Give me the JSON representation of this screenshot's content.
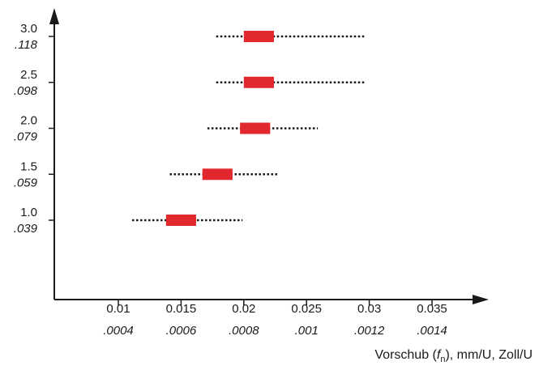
{
  "chart_data": {
    "type": "range",
    "title": "",
    "xlabel_prefix": "Vorschub (",
    "xlabel_symbol": "f",
    "xlabel_subscript": "n",
    "xlabel_suffix": "), mm/U, Zoll/U",
    "ylabel": "",
    "xlim": [
      0.003,
      0.038
    ],
    "ylim": [
      0.0,
      3.4
    ],
    "x_ticks": [
      {
        "value": 0.01,
        "label": "0.01",
        "label_alt": ".0004"
      },
      {
        "value": 0.015,
        "label": "0.015",
        "label_alt": ".0006"
      },
      {
        "value": 0.02,
        "label": "0.02",
        "label_alt": ".0008"
      },
      {
        "value": 0.025,
        "label": "0.025",
        "label_alt": ".001"
      },
      {
        "value": 0.03,
        "label": "0.03",
        "label_alt": ".0012"
      },
      {
        "value": 0.035,
        "label": "0.035",
        "label_alt": ".0014"
      }
    ],
    "y_ticks": [
      {
        "value": 1.0,
        "label": "1.0",
        "label_alt": ".039"
      },
      {
        "value": 1.5,
        "label": "1.5",
        "label_alt": ".059"
      },
      {
        "value": 2.0,
        "label": "2.0",
        "label_alt": ".079"
      },
      {
        "value": 2.5,
        "label": "2.5",
        "label_alt": ".098"
      },
      {
        "value": 3.0,
        "label": "3.0",
        "label_alt": ".118"
      }
    ],
    "series": [
      {
        "y": 1.0,
        "range_min": 0.0111,
        "range_max": 0.0199,
        "rec_min": 0.0138,
        "rec_max": 0.0162
      },
      {
        "y": 1.5,
        "range_min": 0.0141,
        "range_max": 0.0228,
        "rec_min": 0.0167,
        "rec_max": 0.0191
      },
      {
        "y": 2.0,
        "range_min": 0.0171,
        "range_max": 0.0259,
        "rec_min": 0.0197,
        "rec_max": 0.0221
      },
      {
        "y": 2.5,
        "range_min": 0.0178,
        "range_max": 0.0296,
        "rec_min": 0.02,
        "rec_max": 0.0224
      },
      {
        "y": 3.0,
        "range_min": 0.0178,
        "range_max": 0.0296,
        "rec_min": 0.02,
        "rec_max": 0.0224
      }
    ],
    "grid": false,
    "legend": "none",
    "colors": {
      "recommended_bar": "#e0282e",
      "range_line": "#1a1a1a",
      "axis": "#1a1a1a"
    }
  }
}
